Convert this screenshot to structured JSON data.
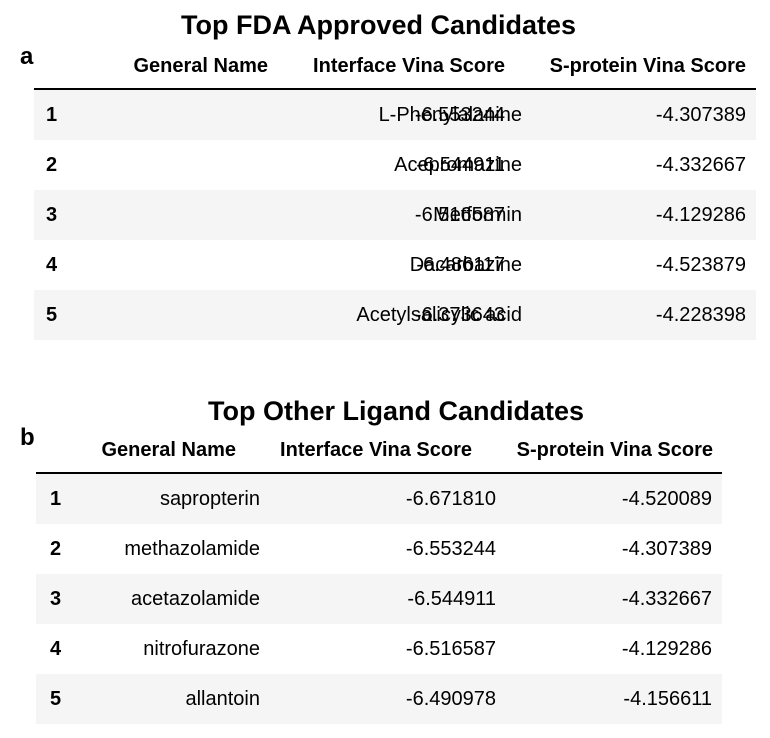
{
  "chart_data": [
    {
      "type": "table",
      "panel": "a",
      "title": "Top FDA Approved Candidates",
      "columns": [
        "",
        "General Name",
        "Interface Vina Score",
        "S-protein Vina Score"
      ],
      "rows": [
        {
          "index": "1",
          "name": "L-Phenylalanine",
          "interface": "-6.553244",
          "sprotein": "-4.307389"
        },
        {
          "index": "2",
          "name": "Acepromazine",
          "interface": "-6.544911",
          "sprotein": "-4.332667"
        },
        {
          "index": "3",
          "name": "Metformin",
          "interface": "-6.516587",
          "sprotein": "-4.129286"
        },
        {
          "index": "4",
          "name": "Dacarbazine",
          "interface": "-6.486117",
          "sprotein": "-4.523879"
        },
        {
          "index": "5",
          "name": "Acetylsalicylic acid",
          "interface": "-6.373643",
          "sprotein": "-4.228398"
        }
      ]
    },
    {
      "type": "table",
      "panel": "b",
      "title": "Top Other Ligand Candidates",
      "columns": [
        "",
        "General Name",
        "Interface Vina Score",
        "S-protein Vina Score"
      ],
      "rows": [
        {
          "index": "1",
          "name": "sapropterin",
          "interface": "-6.671810",
          "sprotein": "-4.520089"
        },
        {
          "index": "2",
          "name": "methazolamide",
          "interface": "-6.553244",
          "sprotein": "-4.307389"
        },
        {
          "index": "3",
          "name": "acetazolamide",
          "interface": "-6.544911",
          "sprotein": "-4.332667"
        },
        {
          "index": "4",
          "name": "nitrofurazone",
          "interface": "-6.516587",
          "sprotein": "-4.129286"
        },
        {
          "index": "5",
          "name": "allantoin",
          "interface": "-6.490978",
          "sprotein": "-4.156611"
        }
      ]
    }
  ],
  "colors": {
    "text": "#000000",
    "row_shade": "#f5f5f5",
    "rule": "#000000"
  }
}
